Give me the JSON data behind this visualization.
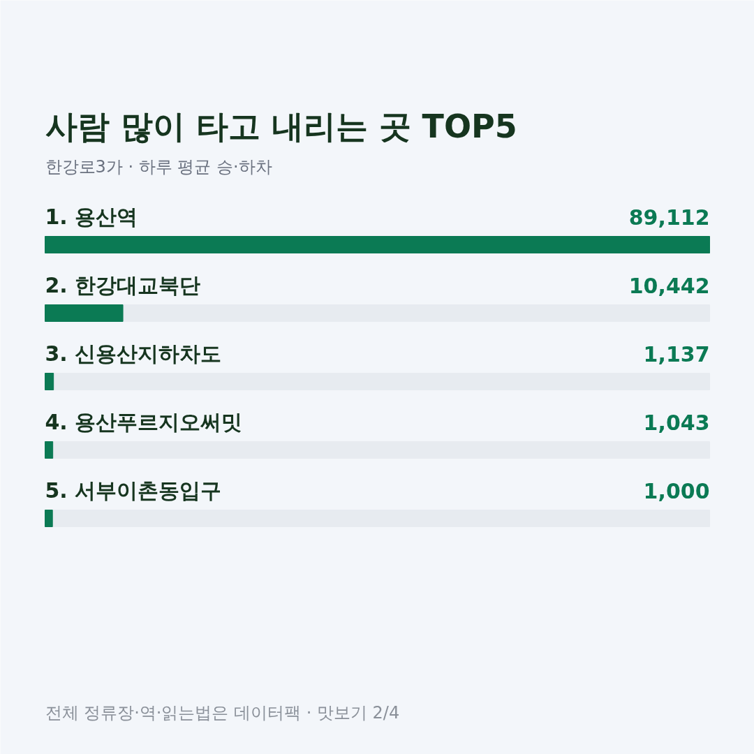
{
  "chart_data": {
    "type": "bar",
    "orientation": "horizontal",
    "title": "사람 많이 타고 내리는 곳 TOP5",
    "subtitle": "한강로3가 · 하루 평균 승·하차",
    "categories": [
      "1. 용산역",
      "2. 한강대교북단",
      "3. 신용산지하차도",
      "4. 용산푸르지오써밋",
      "5. 서부이촌동입구"
    ],
    "values": [
      89112,
      10442,
      1137,
      1043,
      1000
    ],
    "color": "#0b7a54",
    "value_labels": [
      "89,112",
      "10,442",
      "1,137",
      "1,043",
      "1,000"
    ],
    "annotations": [
      "전체 정류장·역·읽는법은 데이터팩 · 맛보기 2/4"
    ]
  }
}
